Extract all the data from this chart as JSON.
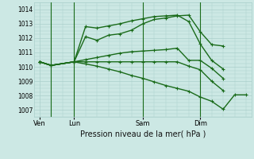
{
  "title": "Pression niveau de la mer( hPa )",
  "bg_color": "#cce8e4",
  "grid_color": "#aacfcb",
  "line_color": "#1a6b1a",
  "ylim": [
    1006.5,
    1014.5
  ],
  "yticks": [
    1007,
    1008,
    1009,
    1010,
    1011,
    1012,
    1013,
    1014
  ],
  "xtick_labels": [
    "Ven",
    "Lun",
    "Sam",
    "Dim"
  ],
  "xtick_positions": [
    0,
    3,
    9,
    14
  ],
  "vline_positions": [
    1,
    3,
    9,
    14
  ],
  "series": [
    {
      "x": [
        0,
        1,
        3,
        4,
        5,
        6,
        7,
        8,
        9,
        10,
        11,
        12,
        13,
        14,
        15,
        16
      ],
      "y": [
        1010.35,
        1010.1,
        1010.35,
        1012.1,
        1011.85,
        1012.2,
        1012.3,
        1012.55,
        1013.0,
        1013.3,
        1013.4,
        1013.55,
        1013.6,
        1012.45,
        1011.55,
        1011.45
      ]
    },
    {
      "x": [
        0,
        1,
        3,
        4,
        5,
        6,
        7,
        8,
        9,
        10,
        11,
        12,
        13,
        14,
        15,
        16
      ],
      "y": [
        1010.35,
        1010.1,
        1010.35,
        1012.8,
        1012.7,
        1012.85,
        1013.0,
        1013.2,
        1013.35,
        1013.5,
        1013.55,
        1013.6,
        1013.15,
        1011.6,
        1010.45,
        1009.85
      ]
    },
    {
      "x": [
        0,
        1,
        3,
        4,
        5,
        6,
        7,
        8,
        9,
        10,
        11,
        12,
        13,
        14,
        15,
        16
      ],
      "y": [
        1010.35,
        1010.1,
        1010.35,
        1010.5,
        1010.65,
        1010.8,
        1010.95,
        1011.05,
        1011.1,
        1011.15,
        1011.2,
        1011.3,
        1010.45,
        1010.45,
        1009.9,
        1009.2
      ]
    },
    {
      "x": [
        0,
        1,
        3,
        4,
        5,
        6,
        7,
        8,
        9,
        10,
        11,
        12,
        13,
        14,
        15,
        16
      ],
      "y": [
        1010.35,
        1010.1,
        1010.35,
        1010.35,
        1010.35,
        1010.35,
        1010.35,
        1010.35,
        1010.35,
        1010.35,
        1010.35,
        1010.35,
        1010.05,
        1009.8,
        1009.0,
        1008.35
      ]
    },
    {
      "x": [
        0,
        1,
        3,
        4,
        5,
        6,
        7,
        8,
        9,
        10,
        11,
        12,
        13,
        14,
        15,
        16,
        17,
        18
      ],
      "y": [
        1010.35,
        1010.1,
        1010.35,
        1010.2,
        1010.05,
        1009.85,
        1009.65,
        1009.4,
        1009.2,
        1008.95,
        1008.7,
        1008.5,
        1008.3,
        1007.9,
        1007.6,
        1007.05,
        1008.05,
        1008.05
      ]
    }
  ],
  "figsize": [
    3.2,
    2.0
  ],
  "dpi": 100
}
